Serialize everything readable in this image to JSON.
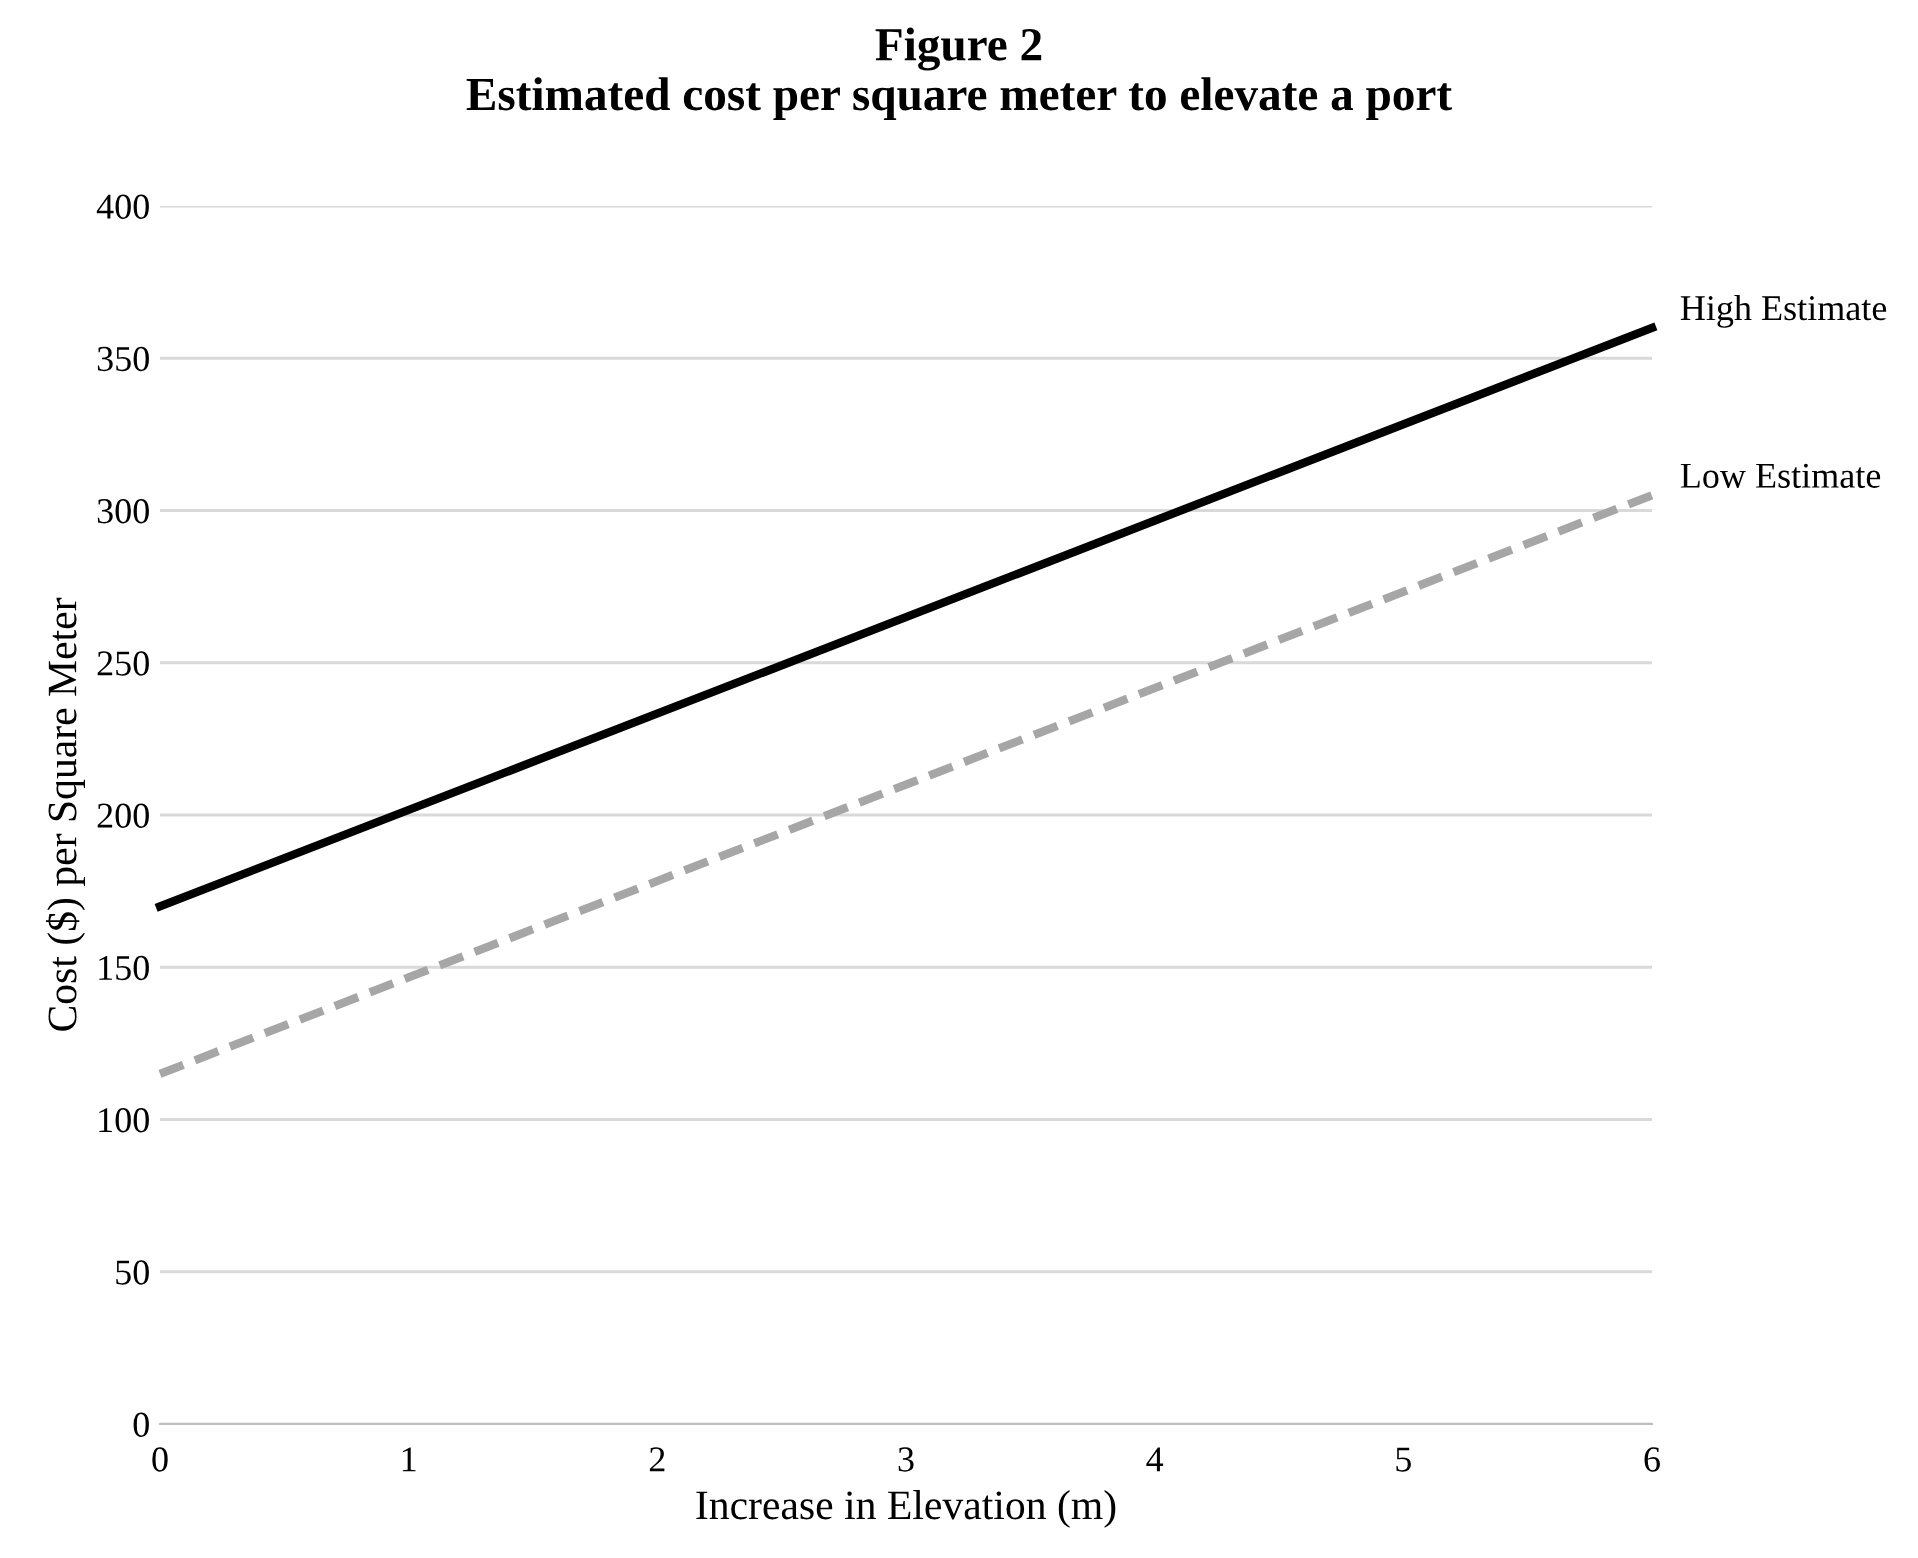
{
  "chart_data": {
    "type": "line",
    "title": "Figure 2\nEstimated cost per square meter to elevate a port",
    "xlabel": "Increase in Elevation (m)",
    "ylabel": "Cost ($) per Square Meter",
    "x": [
      0,
      6
    ],
    "series": [
      {
        "name": "High Estimate",
        "color": "#000000",
        "values": [
          170,
          360
        ],
        "line_style": "solid"
      },
      {
        "name": "Low Estimate",
        "color": "#a6a6a6",
        "values": [
          115,
          305
        ],
        "line_style": "dashed"
      }
    ],
    "xlim": [
      0,
      6
    ],
    "xticks": [
      0,
      1,
      2,
      3,
      4,
      5,
      6
    ],
    "ylim": [
      0,
      400
    ],
    "yticks": [
      0,
      50,
      100,
      150,
      200,
      250,
      300,
      350,
      400
    ],
    "grid": "y",
    "legend": false,
    "marker": "none"
  }
}
